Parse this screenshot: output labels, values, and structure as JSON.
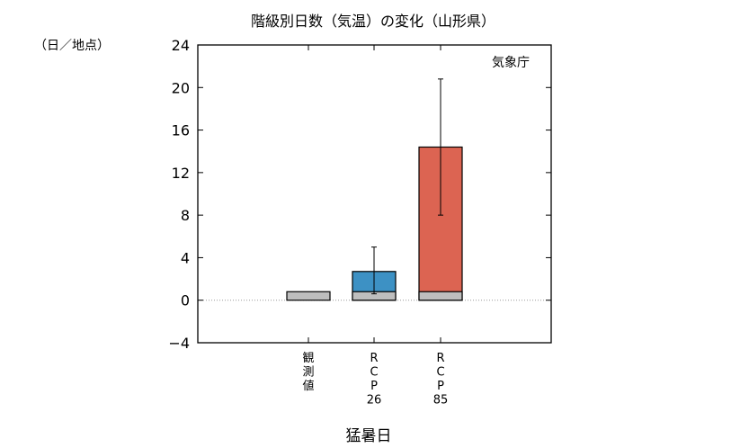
{
  "chart_data": {
    "type": "bar",
    "title": "階級別日数（気温）の変化（山形県）",
    "ylabel": "（日／地点）",
    "xlabel": "猛暑日",
    "source_note": "気象庁",
    "ylim": [
      -4,
      24
    ],
    "yticks": [
      -4,
      0,
      4,
      8,
      12,
      16,
      20,
      24
    ],
    "grid": false,
    "zero_line": "dotted",
    "categories": [
      "観測値",
      "RCP26",
      "RCP85"
    ],
    "category_labels": [
      [
        "観",
        "測",
        "値"
      ],
      [
        "R",
        "C",
        "P",
        "26"
      ],
      [
        "R",
        "C",
        "P",
        "85"
      ]
    ],
    "series": [
      {
        "values": [
          0.8,
          0.8,
          0.8
        ],
        "color": "#bebebe"
      },
      {
        "values": [
          null,
          2.7,
          14.4
        ],
        "error_low": [
          null,
          0.6,
          8.0
        ],
        "error_high": [
          null,
          5.0,
          20.8
        ],
        "colors": [
          null,
          "#3d91c4",
          "#dc6452"
        ]
      }
    ]
  }
}
